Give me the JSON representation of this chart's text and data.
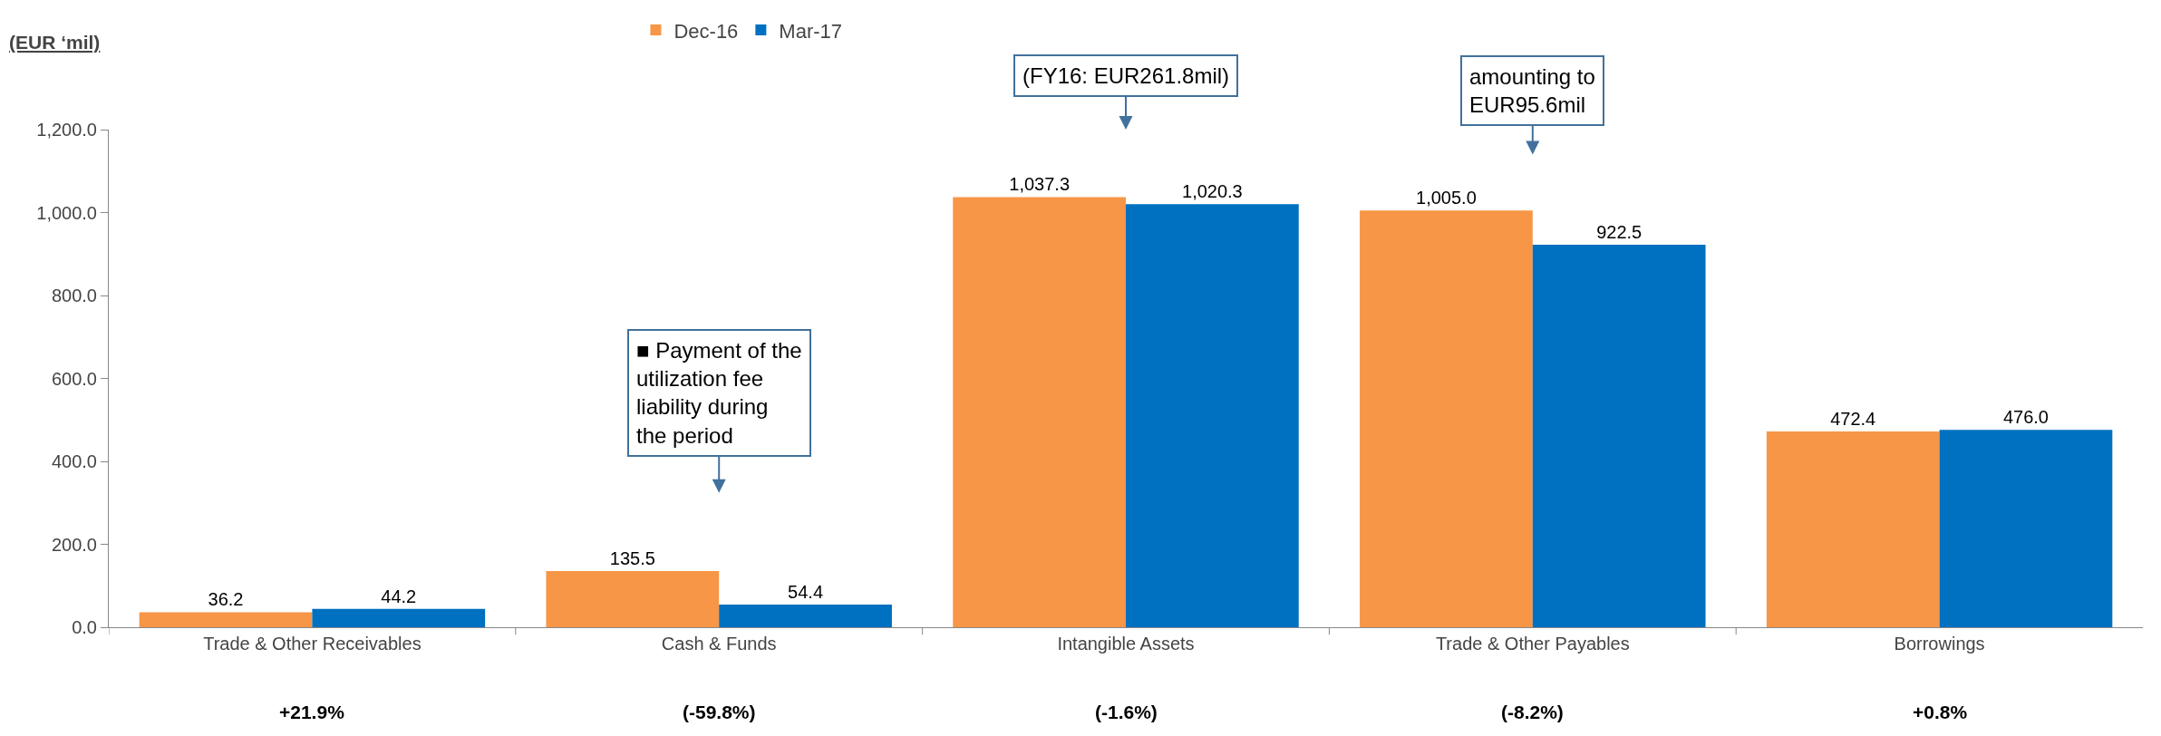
{
  "chart_data": {
    "type": "bar",
    "ylabel": "(EUR ‘mil)",
    "categories": [
      "Trade & Other Receivables",
      "Cash & Funds",
      "Intangible Assets",
      "Trade & Other Payables",
      "Borrowings"
    ],
    "series": [
      {
        "name": "Dec-16",
        "color": "#f79646",
        "values": [
          36.2,
          135.5,
          1037.3,
          1005.0,
          472.4
        ],
        "value_labels": [
          "36.2",
          "135.5",
          "1,037.3",
          "1,005.0",
          "472.4"
        ]
      },
      {
        "name": "Mar-17",
        "color": "#0070c0",
        "values": [
          44.2,
          54.4,
          1020.3,
          922.5,
          476.0
        ],
        "value_labels": [
          "44.2",
          "54.4",
          "1,020.3",
          "922.5",
          "476.0"
        ]
      }
    ],
    "ylim": [
      0,
      1200
    ],
    "yticks": [
      {
        "value": 0,
        "label": "0.0"
      },
      {
        "value": 200,
        "label": "200.0"
      },
      {
        "value": 400,
        "label": "400.0"
      },
      {
        "value": 600,
        "label": "600.0"
      },
      {
        "value": 800,
        "label": "800.0"
      },
      {
        "value": 1000,
        "label": "1,000.0"
      },
      {
        "value": 1200,
        "label": "1,200.0"
      }
    ],
    "grid": false,
    "legend": "top",
    "annotations": [
      "■ Payment of the utilization fee liability during the period",
      "(FY16: EUR261.8mil)",
      "amounting to EUR95.6mil",
      "+21.9%",
      "(-59.8%)",
      "(-1.6%)",
      "(-8.2%)",
      "+0.8%"
    ]
  }
}
